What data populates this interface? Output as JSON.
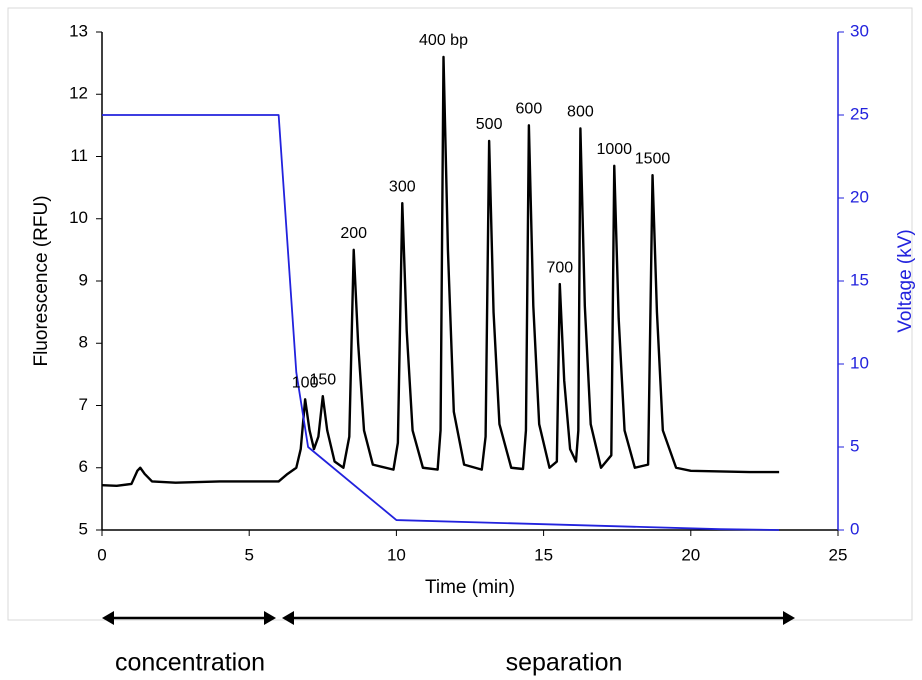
{
  "chart_data": {
    "type": "line",
    "xlabel": "Time (min)",
    "ylabel": "Fluorescence (RFU)",
    "y2label": "Voltage (kV)",
    "xlim": [
      0,
      25
    ],
    "xticks": [
      0,
      5,
      10,
      15,
      20,
      25
    ],
    "ylim": [
      5,
      13
    ],
    "yticks": [
      5,
      6,
      7,
      8,
      9,
      10,
      11,
      12,
      13
    ],
    "y2lim": [
      0,
      30
    ],
    "y2ticks": [
      0,
      5,
      10,
      15,
      20,
      25,
      30
    ],
    "series": [
      {
        "color": "#000000",
        "x": [
          0,
          0.5,
          1.0,
          1.2,
          1.3,
          1.45,
          1.7,
          2.5,
          4,
          5.5,
          6.0,
          6.3,
          6.6,
          6.75,
          6.9,
          7.05,
          7.2,
          7.35,
          7.5,
          7.65,
          7.9,
          8.2,
          8.4,
          8.55,
          8.7,
          8.9,
          9.2,
          9.9,
          10.05,
          10.2,
          10.35,
          10.55,
          10.9,
          11.4,
          11.5,
          11.6,
          11.75,
          11.95,
          12.3,
          12.9,
          13.03,
          13.15,
          13.3,
          13.5,
          13.9,
          14.3,
          14.4,
          14.5,
          14.65,
          14.85,
          15.2,
          15.45,
          15.55,
          15.7,
          15.9,
          16.1,
          16.18,
          16.25,
          16.4,
          16.6,
          16.95,
          17.3,
          17.4,
          17.55,
          17.75,
          18.1,
          18.55,
          18.7,
          18.85,
          19.05,
          19.5,
          20,
          21,
          22,
          23
        ],
        "values": [
          5.72,
          5.71,
          5.74,
          5.95,
          6.0,
          5.9,
          5.78,
          5.76,
          5.78,
          5.78,
          5.78,
          5.9,
          6.0,
          6.3,
          7.1,
          6.6,
          6.3,
          6.5,
          7.15,
          6.6,
          6.1,
          6.0,
          6.5,
          9.5,
          8.0,
          6.6,
          6.05,
          5.97,
          6.4,
          10.25,
          8.2,
          6.6,
          6.0,
          5.97,
          6.6,
          12.6,
          9.5,
          6.9,
          6.05,
          5.97,
          6.5,
          11.25,
          8.5,
          6.7,
          6.0,
          5.98,
          6.6,
          11.5,
          8.6,
          6.7,
          6.0,
          6.1,
          8.95,
          7.4,
          6.3,
          6.1,
          6.6,
          11.45,
          8.6,
          6.7,
          6.0,
          6.2,
          10.85,
          8.4,
          6.6,
          6.0,
          6.05,
          10.7,
          8.5,
          6.6,
          6.0,
          5.95,
          5.94,
          5.93,
          5.93
        ]
      },
      {
        "color": "#2222dd",
        "axis": "y2",
        "x": [
          0,
          6,
          6.6,
          7,
          10,
          21,
          23
        ],
        "values": [
          25,
          25,
          9.5,
          5,
          0.6,
          0.05,
          0
        ]
      }
    ],
    "annotations": [
      {
        "text": "100",
        "x": 6.9,
        "y": 7.1
      },
      {
        "text": "150",
        "x": 7.5,
        "y": 7.15
      },
      {
        "text": "200",
        "x": 8.55,
        "y": 9.5
      },
      {
        "text": "300",
        "x": 10.2,
        "y": 10.25
      },
      {
        "text": "400 bp",
        "x": 11.6,
        "y": 12.6
      },
      {
        "text": "500",
        "x": 13.15,
        "y": 11.25
      },
      {
        "text": "600",
        "x": 14.5,
        "y": 11.5
      },
      {
        "text": "700",
        "x": 15.55,
        "y": 8.95
      },
      {
        "text": "800",
        "x": 16.25,
        "y": 11.45
      },
      {
        "text": "1000",
        "x": 17.4,
        "y": 10.85
      },
      {
        "text": "1500",
        "x": 18.7,
        "y": 10.7
      }
    ],
    "phases": [
      "concentration",
      "separation"
    ]
  }
}
